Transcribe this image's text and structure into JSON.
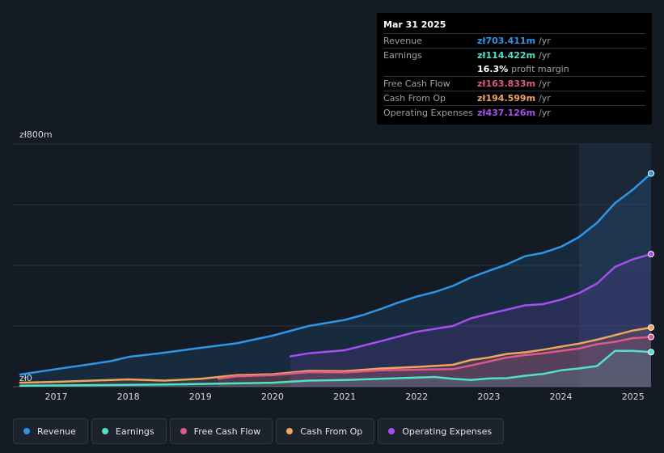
{
  "tooltip": {
    "date": "Mar 31 2025",
    "rows": [
      {
        "label": "Revenue",
        "value": "zł703.411m",
        "unit": "/yr",
        "color": "#2f95e6"
      },
      {
        "label": "Earnings",
        "value": "zł114.422m",
        "unit": "/yr",
        "color": "#52e0c9"
      },
      {
        "label": "",
        "value": "16.3%",
        "unit": "profit margin",
        "color": "#ffffff"
      },
      {
        "label": "Free Cash Flow",
        "value": "zł163.833m",
        "unit": "/yr",
        "color": "#e0578a"
      },
      {
        "label": "Cash From Op",
        "value": "zł194.599m",
        "unit": "/yr",
        "color": "#f0a55c"
      },
      {
        "label": "Operating Expenses",
        "value": "zł437.126m",
        "unit": "/yr",
        "color": "#a54ff0"
      }
    ]
  },
  "legend": {
    "items": [
      {
        "label": "Revenue",
        "color": "#2f95e6"
      },
      {
        "label": "Earnings",
        "color": "#52e0c9"
      },
      {
        "label": "Free Cash Flow",
        "color": "#e0578a"
      },
      {
        "label": "Cash From Op",
        "color": "#f0a55c"
      },
      {
        "label": "Operating Expenses",
        "color": "#a54ff0"
      }
    ]
  },
  "chart_data": {
    "type": "line",
    "title": "",
    "xlabel": "",
    "ylabel": "",
    "ylim": [
      0,
      800
    ],
    "xlim": [
      2016.4,
      2025.25
    ],
    "y_labels": [
      {
        "value": 800,
        "text": "zł800m"
      },
      {
        "value": 0,
        "text": "zł0"
      }
    ],
    "x_ticks": [
      2017,
      2018,
      2019,
      2020,
      2021,
      2022,
      2023,
      2024,
      2025
    ],
    "x_tick_labels": [
      "2017",
      "2018",
      "2019",
      "2020",
      "2021",
      "2022",
      "2023",
      "2024",
      "2025"
    ],
    "highlight_start": 2024.25,
    "series": [
      {
        "name": "Revenue",
        "color": "#2f95e6",
        "x": [
          2016.5,
          2017.0,
          2017.5,
          2017.75,
          2018.0,
          2018.5,
          2019.0,
          2019.5,
          2020.0,
          2020.5,
          2021.0,
          2021.25,
          2021.5,
          2021.75,
          2022.0,
          2022.25,
          2022.5,
          2022.75,
          2023.0,
          2023.25,
          2023.5,
          2023.75,
          2024.0,
          2024.25,
          2024.5,
          2024.75,
          2025.0,
          2025.25
        ],
        "values": [
          40,
          58,
          75,
          84,
          98,
          112,
          128,
          143,
          168,
          200,
          220,
          236,
          256,
          278,
          297,
          312,
          332,
          360,
          382,
          403,
          430,
          441,
          461,
          493,
          540,
          605,
          650,
          703
        ]
      },
      {
        "name": "Operating Expenses",
        "color": "#a54ff0",
        "x": [
          2020.25,
          2020.5,
          2021.0,
          2021.5,
          2022.0,
          2022.5,
          2022.75,
          2023.0,
          2023.25,
          2023.5,
          2023.75,
          2024.0,
          2024.25,
          2024.5,
          2024.75,
          2025.0,
          2025.25
        ],
        "values": [
          100,
          110,
          120,
          150,
          181,
          200,
          225,
          240,
          254,
          268,
          272,
          287,
          308,
          340,
          395,
          420,
          437
        ]
      },
      {
        "name": "Cash From Op",
        "color": "#f0a55c",
        "x": [
          2016.5,
          2017.0,
          2017.5,
          2018.0,
          2018.5,
          2019.0,
          2019.5,
          2020.0,
          2020.5,
          2021.0,
          2021.5,
          2022.0,
          2022.5,
          2022.75,
          2023.0,
          2023.25,
          2023.5,
          2023.75,
          2024.0,
          2024.25,
          2024.5,
          2024.75,
          2025.0,
          2025.25
        ],
        "values": [
          13,
          16,
          20,
          24,
          20,
          26,
          38,
          41,
          52,
          51,
          60,
          65,
          72,
          88,
          96,
          108,
          113,
          122,
          132,
          142,
          155,
          170,
          185,
          195
        ]
      },
      {
        "name": "Free Cash Flow",
        "color": "#e0578a",
        "x": [
          2019.25,
          2019.5,
          2020.0,
          2020.5,
          2021.0,
          2021.5,
          2022.0,
          2022.5,
          2022.75,
          2023.0,
          2023.25,
          2023.5,
          2023.75,
          2024.0,
          2024.25,
          2024.5,
          2024.75,
          2025.0,
          2025.25
        ],
        "values": [
          26,
          34,
          38,
          48,
          47,
          54,
          56,
          58,
          70,
          83,
          96,
          104,
          110,
          118,
          126,
          140,
          148,
          160,
          164
        ]
      },
      {
        "name": "Earnings",
        "color": "#52e0c9",
        "x": [
          2016.5,
          2017.0,
          2017.5,
          2018.0,
          2018.5,
          2019.0,
          2019.5,
          2020.0,
          2020.5,
          2021.0,
          2021.5,
          2022.0,
          2022.25,
          2022.5,
          2022.75,
          2023.0,
          2023.25,
          2023.5,
          2023.75,
          2024.0,
          2024.25,
          2024.5,
          2024.75,
          2025.0,
          2025.25
        ],
        "values": [
          3,
          4,
          5,
          6,
          7,
          9,
          11,
          13,
          20,
          22,
          26,
          30,
          32,
          26,
          22,
          27,
          28,
          36,
          42,
          54,
          60,
          68,
          118,
          118,
          114
        ]
      }
    ]
  }
}
